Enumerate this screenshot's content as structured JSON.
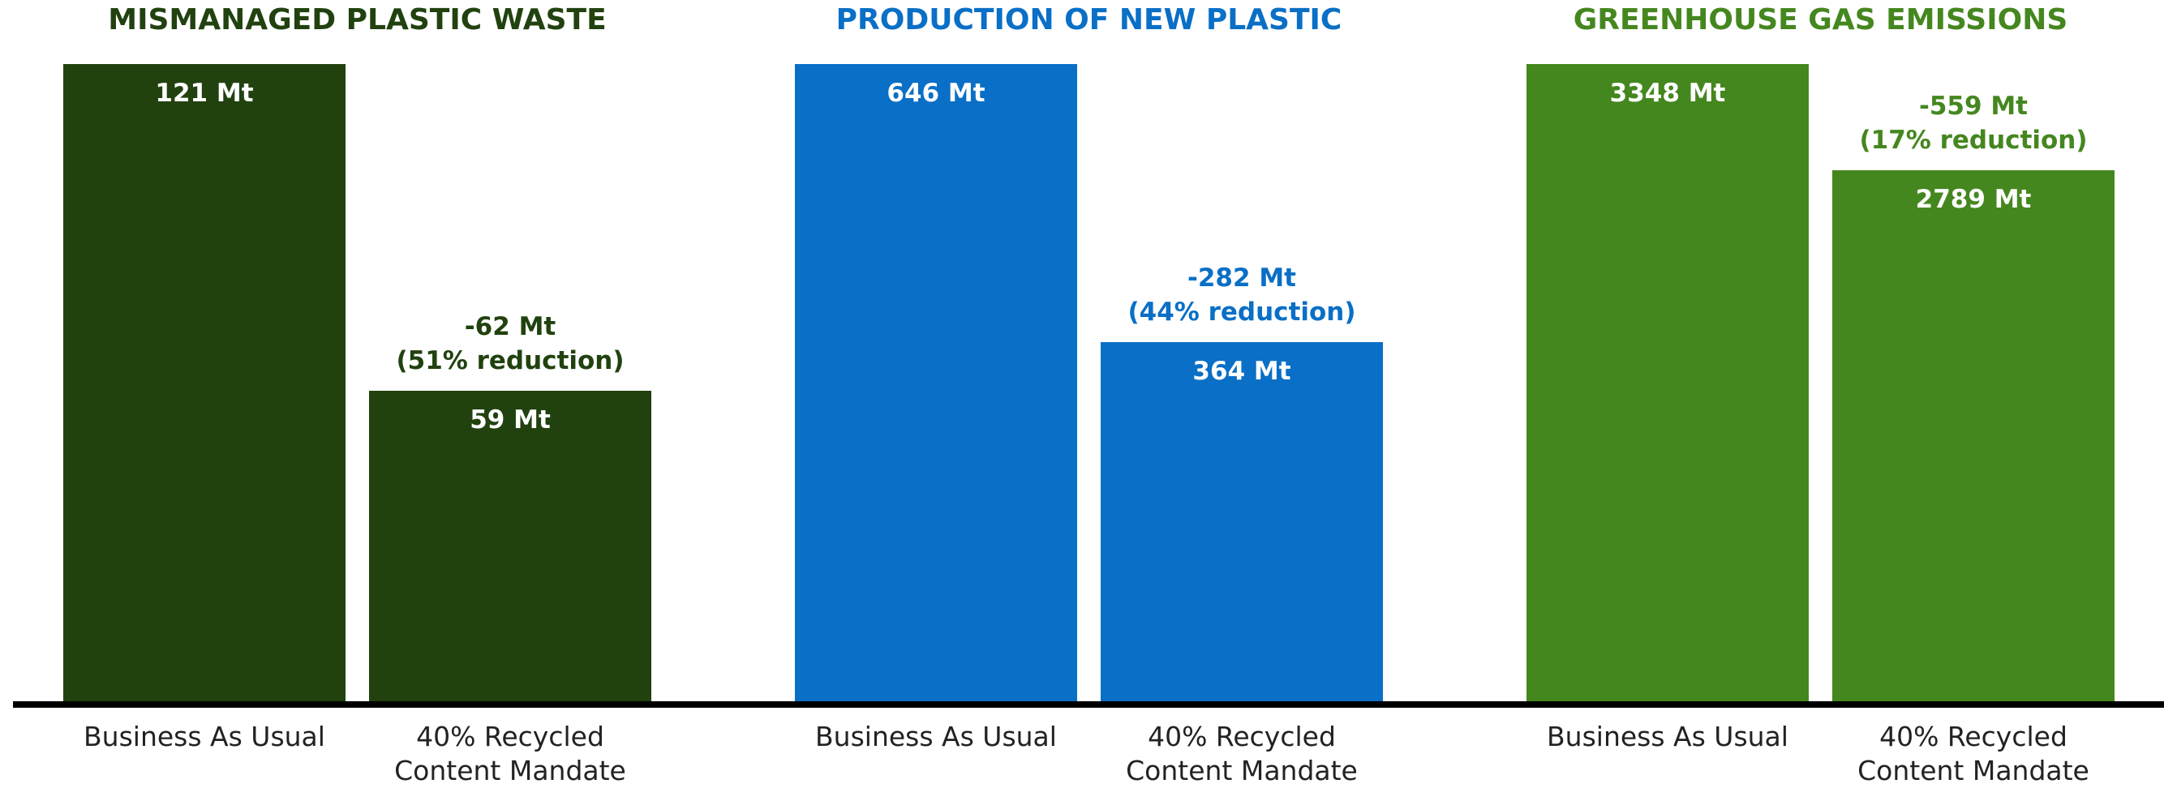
{
  "chart_data": [
    {
      "type": "bar",
      "title": "MISMANAGED PLASTIC WASTE",
      "color": "#21420f",
      "categories": [
        "Business As Usual",
        "40% Recycled Content Mandate"
      ],
      "category_lines": [
        [
          "Business As Usual"
        ],
        [
          "40% Recycled",
          "Content Mandate"
        ]
      ],
      "values": [
        121,
        59
      ],
      "value_labels": [
        "121 Mt",
        "59 Mt"
      ],
      "change_label": [
        "-62 Mt",
        "(51% reduction)"
      ],
      "ylim": [
        0,
        121
      ]
    },
    {
      "type": "bar",
      "title": "PRODUCTION OF NEW PLASTIC",
      "color": "#0a6fc6",
      "categories": [
        "Business As Usual",
        "40% Recycled Content Mandate"
      ],
      "category_lines": [
        [
          "Business As Usual"
        ],
        [
          "40% Recycled",
          "Content Mandate"
        ]
      ],
      "values": [
        646,
        364
      ],
      "value_labels": [
        "646 Mt",
        "364 Mt"
      ],
      "change_label": [
        "-282 Mt",
        "(44% reduction)"
      ],
      "ylim": [
        0,
        646
      ]
    },
    {
      "type": "bar",
      "title": "GREENHOUSE GAS EMISSIONS",
      "color": "#45871f",
      "categories": [
        "Business As Usual",
        "40% Recycled Content Mandate"
      ],
      "category_lines": [
        [
          "Business As Usual"
        ],
        [
          "40% Recycled",
          "Content Mandate"
        ]
      ],
      "values": [
        3348,
        2789
      ],
      "value_labels": [
        "3348 Mt",
        "2789 Mt"
      ],
      "change_label": [
        "-559 Mt",
        "(17% reduction)"
      ],
      "ylim": [
        0,
        3348
      ]
    }
  ]
}
